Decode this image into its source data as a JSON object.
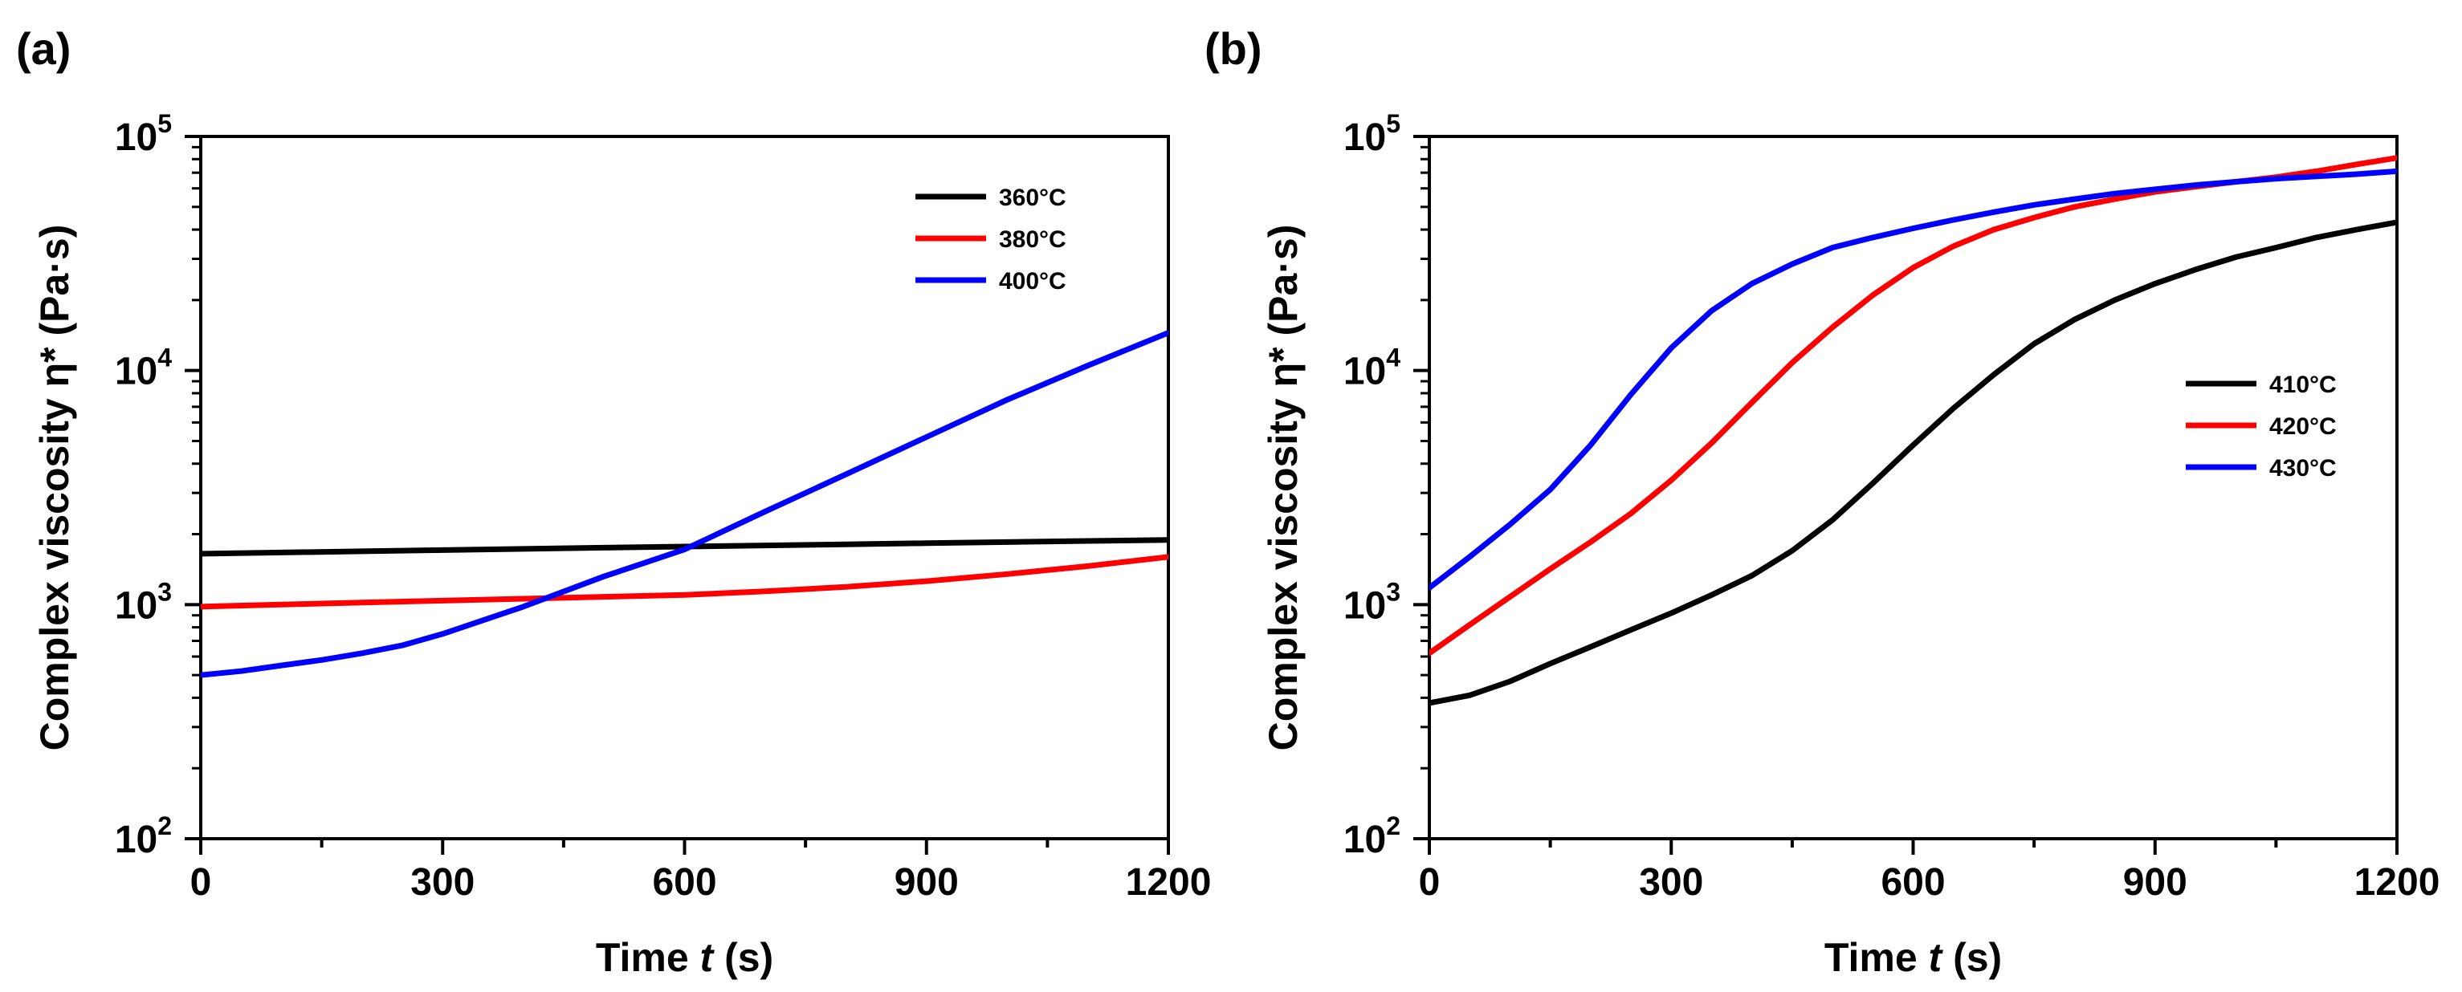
{
  "colors": {
    "s360": "#000000",
    "s380": "#ff0000",
    "s400": "#0000ff",
    "s410": "#000000",
    "s420": "#ff0000",
    "s430": "#0000ff"
  },
  "chart_data": [
    {
      "panel_label": "(a)",
      "type": "line",
      "xlabel": "Time",
      "xlabel_var": "t",
      "xlabel_unit": "(s)",
      "ylabel": "Complex viscosity η* (Pa·s)",
      "xlim": [
        0,
        1200
      ],
      "ylim": [
        100,
        100000
      ],
      "yscale": "log",
      "x_ticks": [
        0,
        300,
        600,
        900,
        1200
      ],
      "x_tick_labels": [
        "0",
        "300",
        "600",
        "900",
        "1200"
      ],
      "y_ticks": [
        100,
        1000,
        10000,
        100000
      ],
      "y_tick_labels": [
        {
          "base": "10",
          "exp": "2"
        },
        {
          "base": "10",
          "exp": "3"
        },
        {
          "base": "10",
          "exp": "4"
        },
        {
          "base": "10",
          "exp": "5"
        }
      ],
      "legend_position": "top-right",
      "series": [
        {
          "name": "360°C",
          "color": "#000000",
          "x": [
            0,
            100,
            200,
            300,
            400,
            500,
            600,
            700,
            800,
            900,
            1000,
            1100,
            1200
          ],
          "y": [
            1650,
            1670,
            1690,
            1710,
            1730,
            1750,
            1770,
            1790,
            1810,
            1830,
            1850,
            1870,
            1890
          ]
        },
        {
          "name": "380°C",
          "color": "#ff0000",
          "x": [
            0,
            100,
            200,
            300,
            400,
            500,
            600,
            700,
            800,
            900,
            1000,
            1100,
            1200
          ],
          "y": [
            980,
            1000,
            1020,
            1040,
            1060,
            1080,
            1100,
            1140,
            1190,
            1260,
            1350,
            1460,
            1600
          ]
        },
        {
          "name": "400°C",
          "color": "#0000ff",
          "x": [
            0,
            50,
            100,
            150,
            200,
            250,
            300,
            400,
            500,
            600,
            700,
            800,
            900,
            1000,
            1100,
            1200
          ],
          "y": [
            500,
            520,
            550,
            580,
            620,
            670,
            750,
            980,
            1320,
            1720,
            2500,
            3600,
            5200,
            7500,
            10500,
            14500
          ]
        }
      ]
    },
    {
      "panel_label": "(b)",
      "type": "line",
      "xlabel": "Time",
      "xlabel_var": "t",
      "xlabel_unit": "(s)",
      "ylabel": "Complex viscosity η* (Pa·s)",
      "xlim": [
        0,
        1200
      ],
      "ylim": [
        100,
        100000
      ],
      "yscale": "log",
      "x_ticks": [
        0,
        300,
        600,
        900,
        1200
      ],
      "x_tick_labels": [
        "0",
        "300",
        "600",
        "900",
        "1200"
      ],
      "y_ticks": [
        100,
        1000,
        10000,
        100000
      ],
      "y_tick_labels": [
        {
          "base": "10",
          "exp": "2"
        },
        {
          "base": "10",
          "exp": "3"
        },
        {
          "base": "10",
          "exp": "4"
        },
        {
          "base": "10",
          "exp": "5"
        }
      ],
      "legend_position": "center-right",
      "series": [
        {
          "name": "410°C",
          "color": "#000000",
          "x": [
            0,
            50,
            100,
            150,
            200,
            250,
            300,
            350,
            400,
            450,
            500,
            550,
            600,
            650,
            700,
            750,
            800,
            850,
            900,
            950,
            1000,
            1050,
            1100,
            1150,
            1200
          ],
          "y": [
            380,
            410,
            470,
            560,
            660,
            780,
            920,
            1100,
            1330,
            1700,
            2300,
            3300,
            4800,
            6900,
            9600,
            13000,
            16500,
            20000,
            23500,
            27000,
            30500,
            33500,
            37000,
            40000,
            43000
          ]
        },
        {
          "name": "420°C",
          "color": "#ff0000",
          "x": [
            0,
            50,
            100,
            150,
            200,
            250,
            300,
            350,
            400,
            450,
            500,
            550,
            600,
            650,
            700,
            750,
            800,
            850,
            900,
            950,
            1000,
            1050,
            1100,
            1150,
            1200
          ],
          "y": [
            620,
            820,
            1080,
            1420,
            1850,
            2450,
            3400,
            4900,
            7300,
            10800,
            15300,
            21000,
            27500,
            34000,
            40000,
            45000,
            50000,
            54000,
            58000,
            61000,
            64000,
            67000,
            71000,
            76000,
            81000
          ]
        },
        {
          "name": "430°C",
          "color": "#0000ff",
          "x": [
            0,
            50,
            100,
            150,
            200,
            250,
            300,
            350,
            400,
            450,
            500,
            550,
            600,
            650,
            700,
            750,
            800,
            850,
            900,
            950,
            1000,
            1050,
            1100,
            1150,
            1200
          ],
          "y": [
            1180,
            1600,
            2200,
            3100,
            4800,
            7900,
            12500,
            18000,
            23500,
            28500,
            33500,
            37000,
            40500,
            44000,
            47500,
            51000,
            54000,
            57000,
            59500,
            62000,
            64000,
            66000,
            67500,
            69000,
            71000
          ]
        }
      ]
    }
  ]
}
